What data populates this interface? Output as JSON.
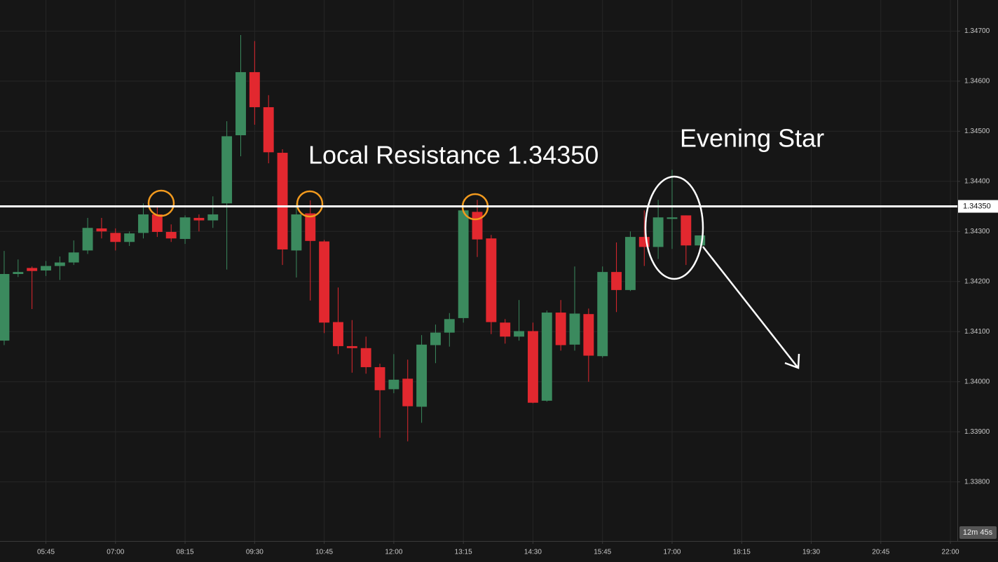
{
  "chart_data": {
    "type": "candlestick",
    "up_color": "#3b8a5e",
    "down_color": "#e2282f",
    "grid": true,
    "x": [
      300,
      315,
      330,
      345,
      360,
      375,
      390,
      405,
      420,
      435,
      450,
      465,
      480,
      495,
      510,
      525,
      540,
      555,
      570,
      585,
      600,
      615,
      630,
      645,
      660,
      675,
      690,
      705,
      720,
      735,
      750,
      765,
      780,
      795,
      810,
      825,
      840,
      855,
      870,
      885,
      900,
      915,
      930,
      945,
      960,
      975,
      990,
      1005,
      1020,
      1035,
      1050
    ],
    "open": [
      1.34082,
      1.34215,
      1.34227,
      1.34222,
      1.34231,
      1.34238,
      1.34262,
      1.34306,
      1.34297,
      1.34279,
      1.34297,
      1.34334,
      1.34299,
      1.34285,
      1.34327,
      1.34322,
      1.34356,
      1.34492,
      1.34618,
      1.34548,
      1.34457,
      1.34262,
      1.34336,
      1.3428,
      1.34119,
      1.34071,
      1.34067,
      1.34029,
      1.33985,
      1.34006,
      1.3395,
      1.34073,
      1.34098,
      1.34127,
      1.34339,
      1.34286,
      1.34118,
      1.3409,
      1.34101,
      1.33962,
      1.34138,
      1.34074,
      1.34135,
      1.34051,
      1.34219,
      1.34183,
      1.34289,
      1.34269,
      1.34325,
      1.34332,
      1.34272
    ],
    "high": [
      1.34261,
      1.34244,
      1.3423,
      1.34241,
      1.3425,
      1.34282,
      1.34327,
      1.34327,
      1.34306,
      1.343,
      1.34356,
      1.34348,
      1.34314,
      1.34332,
      1.34334,
      1.3437,
      1.3452,
      1.34692,
      1.3468,
      1.34572,
      1.34464,
      1.34356,
      1.34362,
      1.34283,
      1.34188,
      1.34123,
      1.3409,
      1.34036,
      1.34055,
      1.34044,
      1.34093,
      1.34114,
      1.34137,
      1.34356,
      1.34363,
      1.34293,
      1.34125,
      1.34163,
      1.34118,
      1.34142,
      1.34163,
      1.3423,
      1.34146,
      1.3423,
      1.34278,
      1.343,
      1.34342,
      1.34363,
      1.34423,
      1.34332,
      1.34292
    ],
    "low": [
      1.34073,
      1.34209,
      1.34145,
      1.34211,
      1.34203,
      1.34233,
      1.34255,
      1.34286,
      1.34262,
      1.34271,
      1.34286,
      1.34289,
      1.34279,
      1.34275,
      1.343,
      1.34307,
      1.34224,
      1.3445,
      1.34513,
      1.34436,
      1.34233,
      1.34208,
      1.34162,
      1.34097,
      1.34055,
      1.34018,
      1.34016,
      1.33888,
      1.33977,
      1.33881,
      1.33918,
      1.34037,
      1.3407,
      1.34118,
      1.34249,
      1.34095,
      1.34076,
      1.34082,
      1.33957,
      1.3396,
      1.34062,
      1.34062,
      1.34,
      1.34048,
      1.34139,
      1.34181,
      1.34231,
      1.34245,
      1.34265,
      1.34233,
      1.34272
    ],
    "close": [
      1.34215,
      1.34219,
      1.34221,
      1.34231,
      1.34238,
      1.34258,
      1.34307,
      1.343,
      1.34279,
      1.34296,
      1.34334,
      1.34299,
      1.34286,
      1.34328,
      1.34322,
      1.34334,
      1.3449,
      1.34618,
      1.34548,
      1.34458,
      1.34264,
      1.34334,
      1.34281,
      1.34118,
      1.34071,
      1.34067,
      1.34029,
      1.33983,
      1.34004,
      1.33951,
      1.34074,
      1.34098,
      1.34125,
      1.34342,
      1.34284,
      1.34119,
      1.3409,
      1.34101,
      1.33958,
      1.34138,
      1.34073,
      1.34136,
      1.34052,
      1.34219,
      1.34183,
      1.34289,
      1.34269,
      1.34328,
      1.34328,
      1.34272,
      1.34292
    ],
    "xlim": [
      295.5,
      1327.5
    ],
    "ylim": [
      1.33682,
      1.34762
    ],
    "xticks": [
      {
        "value": 345,
        "label": "05:45"
      },
      {
        "value": 420,
        "label": "07:00"
      },
      {
        "value": 495,
        "label": "08:15"
      },
      {
        "value": 570,
        "label": "09:30"
      },
      {
        "value": 645,
        "label": "10:45"
      },
      {
        "value": 720,
        "label": "12:00"
      },
      {
        "value": 795,
        "label": "13:15"
      },
      {
        "value": 870,
        "label": "14:30"
      },
      {
        "value": 945,
        "label": "15:45"
      },
      {
        "value": 1020,
        "label": "17:00"
      },
      {
        "value": 1095,
        "label": "18:15"
      },
      {
        "value": 1170,
        "label": "19:30"
      },
      {
        "value": 1245,
        "label": "20:45"
      },
      {
        "value": 1320,
        "label": "22:00"
      }
    ],
    "yticks": [
      {
        "value": 1.347,
        "label": "1.34700"
      },
      {
        "value": 1.346,
        "label": "1.34600"
      },
      {
        "value": 1.345,
        "label": "1.34500"
      },
      {
        "value": 1.344,
        "label": "1.34400"
      },
      {
        "value": 1.343,
        "label": "1.34300"
      },
      {
        "value": 1.342,
        "label": "1.34200"
      },
      {
        "value": 1.341,
        "label": "1.34100"
      },
      {
        "value": 1.34,
        "label": "1.34000"
      },
      {
        "value": 1.339,
        "label": "1.33900"
      },
      {
        "value": 1.338,
        "label": "1.33800"
      }
    ],
    "resistance": {
      "value": 1.3435,
      "label": "1.34350",
      "color": "#ffffff"
    },
    "annotations": {
      "resistance_text": "Local Resistance 1.34350",
      "pattern_text": "Evening Star"
    },
    "countdown": "12m 45s"
  }
}
